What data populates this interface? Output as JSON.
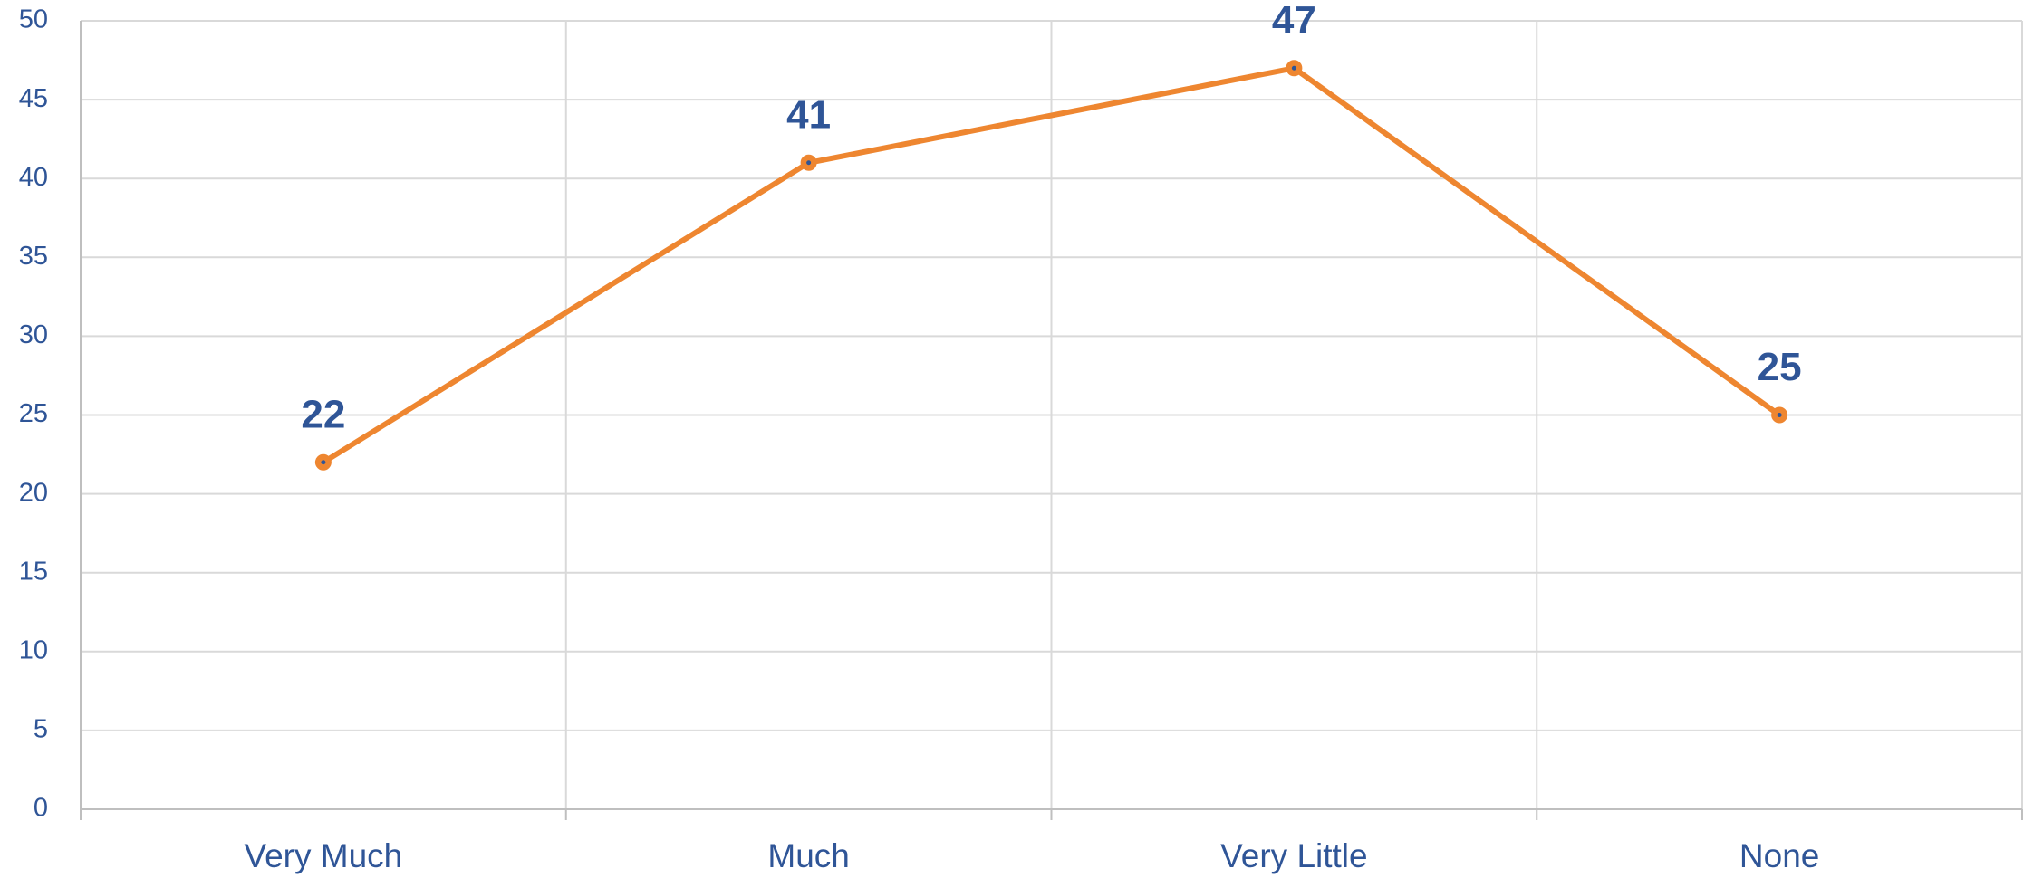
{
  "chart_data": {
    "type": "line",
    "categories": [
      "Very Much",
      "Much",
      "Very Little",
      "None"
    ],
    "values": [
      22,
      41,
      47,
      25
    ],
    "color": "#ee8630",
    "label_color": "#2f5597",
    "ylim": [
      0,
      50
    ],
    "yticks": [
      0,
      5,
      10,
      15,
      20,
      25,
      30,
      35,
      40,
      45,
      50
    ],
    "grid": true
  }
}
